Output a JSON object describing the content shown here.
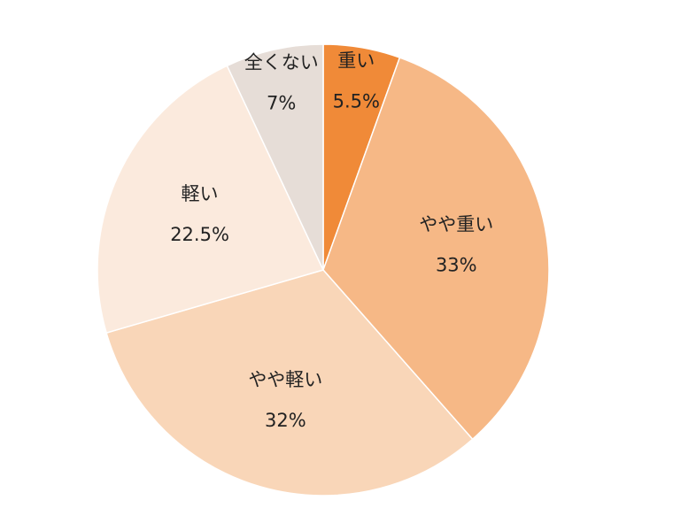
{
  "chart_data": {
    "type": "pie",
    "categories": [
      "重い",
      "やや重い",
      "やや軽い",
      "軽い",
      "全くない"
    ],
    "values": [
      5.5,
      33,
      32,
      22.5,
      7
    ],
    "value_labels": [
      "5.5%",
      "33%",
      "32%",
      "22.5%",
      "7%"
    ],
    "colors": [
      "#f08a38",
      "#f6b886",
      "#f9d6b8",
      "#fbeadd",
      "#e6ddd7"
    ]
  }
}
